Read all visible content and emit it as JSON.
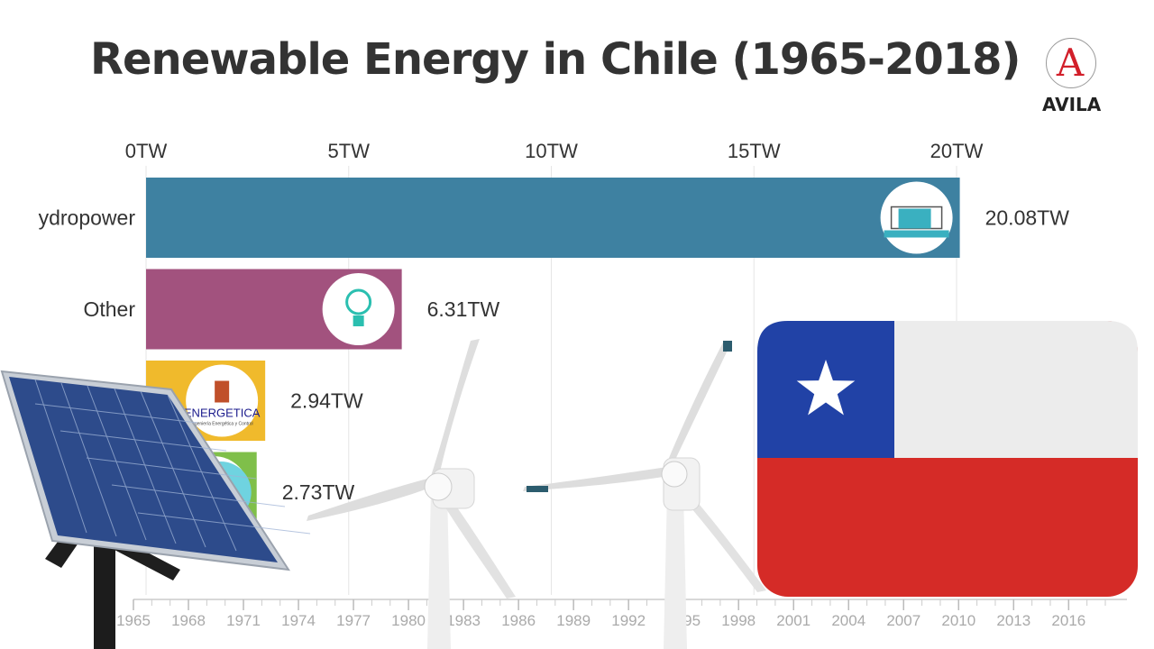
{
  "title": "Renewable Energy in Chile (1965-2018)",
  "logo": {
    "letter": "A",
    "text": "AVILA"
  },
  "chart_data": {
    "type": "bar",
    "orientation": "horizontal",
    "title": "Renewable Energy in Chile (1965-2018)",
    "categories": [
      "ydropower",
      "Other",
      "Solar",
      ""
    ],
    "values": [
      20.08,
      6.31,
      2.94,
      2.73
    ],
    "value_labels": [
      "20.08TW",
      "6.31TW",
      "2.94TW",
      "2.73TW"
    ],
    "colors": [
      "#3e81a1",
      "#a2527e",
      "#f0ba2c",
      "#7fbf4a"
    ],
    "icons": [
      "dam-icon",
      "lightbulb-icon",
      "energetica-logo-icon",
      "circle-icon"
    ],
    "brand_text": "ENERGETICA",
    "brand_subtext": "Ingeniería Energética y Control",
    "xlim": [
      0,
      20
    ],
    "x_ticks": [
      0,
      5,
      10,
      15,
      20
    ],
    "x_tick_labels": [
      "0TW",
      "5TW",
      "10TW",
      "15TW",
      "20TW"
    ],
    "grid": true,
    "timeline": {
      "start": 1965,
      "end": 2018,
      "tick_years": [
        1965,
        1968,
        1971,
        1974,
        1977,
        1980,
        1983,
        1986,
        1989,
        1992,
        1995,
        1998,
        2001,
        2004,
        2007,
        2010,
        2013,
        2016
      ],
      "tick_labels": [
        "1965",
        "1968",
        "1971",
        "1974",
        "1977",
        "1980",
        "1983",
        "1986",
        "1989",
        "1992",
        "1995",
        "1998",
        "2001",
        "2004",
        "2007",
        "2010",
        "2013",
        "2016"
      ]
    }
  },
  "images": [
    "solar-panel",
    "wind-turbine",
    "wind-turbine",
    "chile-flag"
  ],
  "colors": {
    "flag_blue": "#2142a6",
    "flag_red": "#d52b27",
    "flag_white": "#ececec",
    "gridline": "#e6e6e6"
  }
}
